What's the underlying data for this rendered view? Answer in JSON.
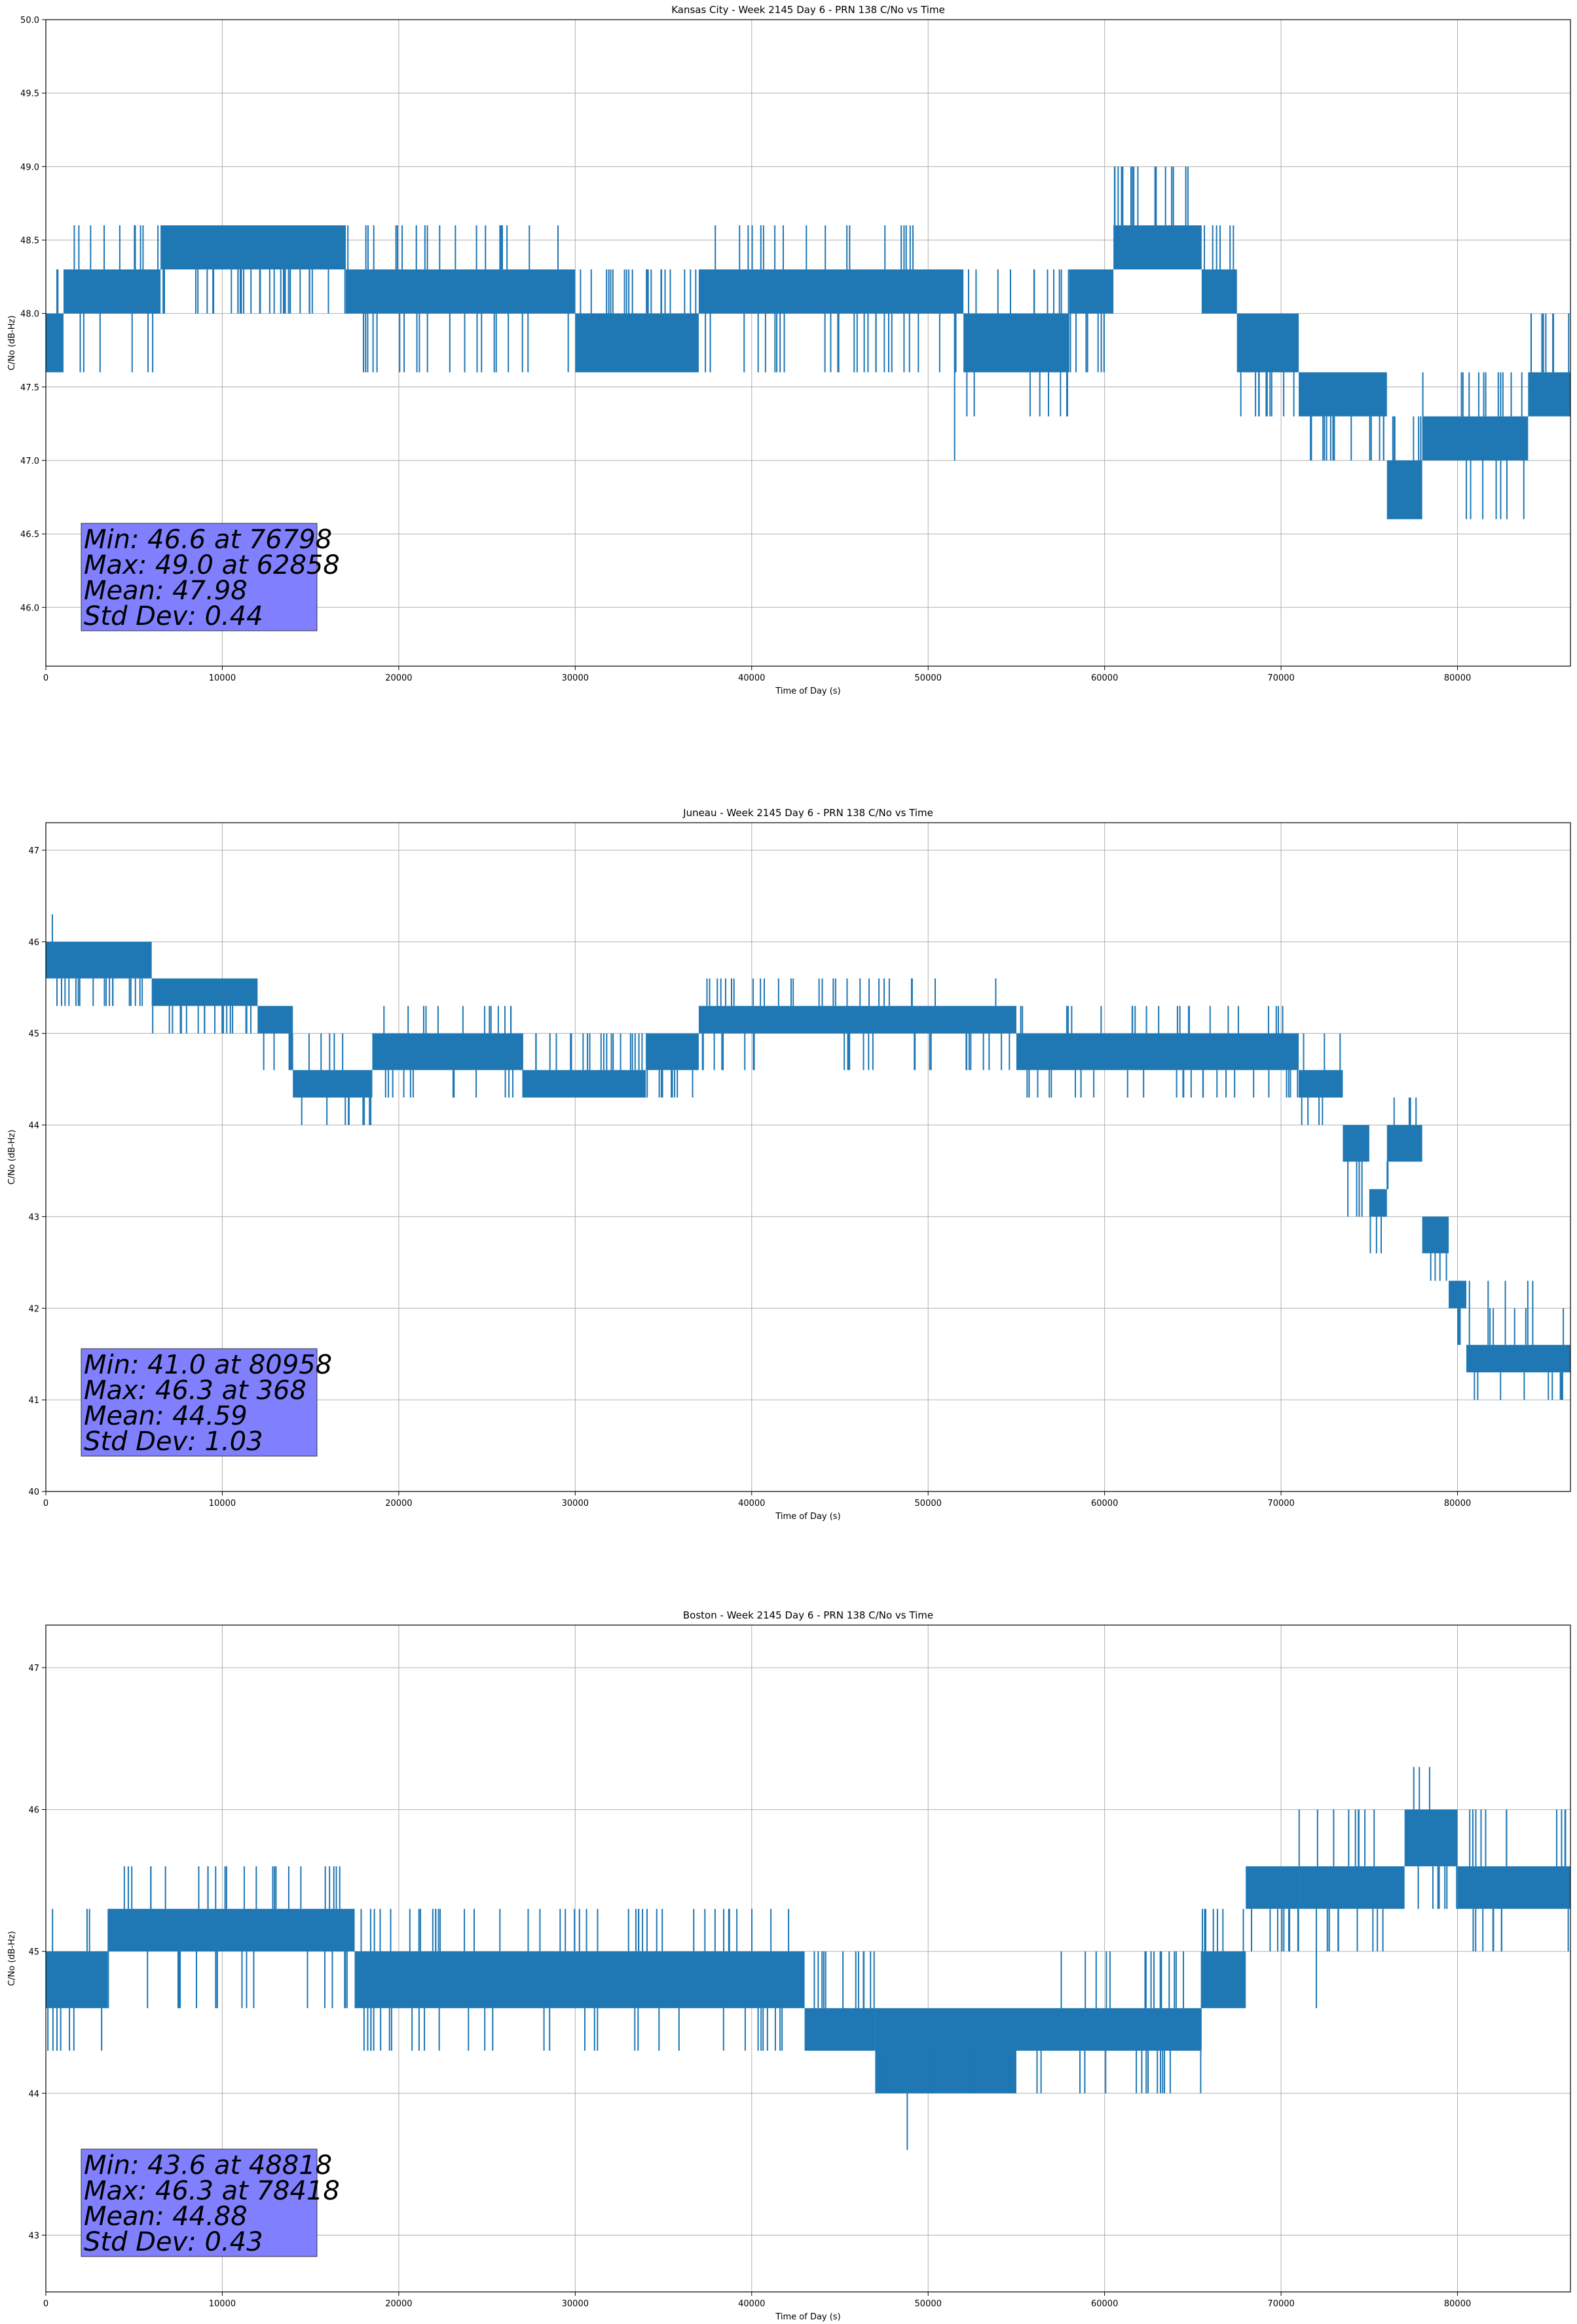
{
  "colors": {
    "line": "#1f77b4",
    "grid": "#b0b0b0",
    "stats_box": "#8080ff"
  },
  "chart_data": [
    {
      "type": "line",
      "title": "Kansas City - Week 2145 Day 6 - PRN 138 C/No vs Time",
      "xlabel": "Time of Day (s)",
      "ylabel": "C/No (dB-Hz)",
      "xlim": [
        0,
        86400
      ],
      "ylim": [
        45.6,
        50.0
      ],
      "xticks": [
        0,
        10000,
        20000,
        30000,
        40000,
        50000,
        60000,
        70000,
        80000
      ],
      "yticks": [
        46.0,
        46.5,
        47.0,
        47.5,
        48.0,
        48.5,
        49.0,
        49.5,
        50.0
      ],
      "ytick_decimals": 1,
      "grid": true,
      "stats_location": "bottom-left",
      "stats": [
        "Min: 46.6 at 76798",
        "Max: 49.0 at 62858",
        "Mean: 47.98",
        "Std Dev: 0.44"
      ],
      "series": [
        {
          "name": "C/No",
          "segments": [
            {
              "x0": 0,
              "x1": 1000,
              "lo": 47.6,
              "hi": 48.0,
              "spikes": [
                48.3
              ]
            },
            {
              "x0": 1000,
              "x1": 6500,
              "lo": 48.0,
              "hi": 48.3,
              "spikes": [
                48.6,
                47.6
              ]
            },
            {
              "x0": 6500,
              "x1": 17000,
              "lo": 48.3,
              "hi": 48.6,
              "spikes": [
                48.0
              ]
            },
            {
              "x0": 17000,
              "x1": 30000,
              "lo": 48.0,
              "hi": 48.3,
              "spikes": [
                48.6,
                47.6
              ]
            },
            {
              "x0": 30000,
              "x1": 37000,
              "lo": 47.6,
              "hi": 48.0,
              "spikes": [
                48.3
              ]
            },
            {
              "x0": 37000,
              "x1": 52000,
              "lo": 48.0,
              "hi": 48.3,
              "spikes": [
                48.6,
                47.6
              ]
            },
            {
              "x0": 52000,
              "x1": 58000,
              "lo": 47.6,
              "hi": 48.0,
              "spikes": [
                48.3,
                47.3
              ]
            },
            {
              "x0": 58000,
              "x1": 60500,
              "lo": 48.0,
              "hi": 48.3,
              "spikes": [
                47.6
              ]
            },
            {
              "x0": 60500,
              "x1": 65500,
              "lo": 48.3,
              "hi": 48.6,
              "spikes": [
                49.0
              ]
            },
            {
              "x0": 65500,
              "x1": 67500,
              "lo": 48.0,
              "hi": 48.3,
              "spikes": [
                48.6
              ]
            },
            {
              "x0": 67500,
              "x1": 71000,
              "lo": 47.6,
              "hi": 48.0,
              "spikes": [
                47.3
              ]
            },
            {
              "x0": 71000,
              "x1": 76000,
              "lo": 47.3,
              "hi": 47.6,
              "spikes": [
                47.0
              ]
            },
            {
              "x0": 76000,
              "x1": 78000,
              "lo": 46.6,
              "hi": 47.0,
              "spikes": [
                47.3
              ]
            },
            {
              "x0": 78000,
              "x1": 84000,
              "lo": 47.0,
              "hi": 47.3,
              "spikes": [
                47.6,
                46.6
              ]
            },
            {
              "x0": 84000,
              "x1": 86400,
              "lo": 47.3,
              "hi": 47.6,
              "spikes": [
                48.0
              ]
            }
          ],
          "outliers": [
            [
              18000,
              47.6
            ],
            [
              51500,
              47.0
            ],
            [
              57500,
              47.3
            ],
            [
              62858,
              49.0
            ],
            [
              76798,
              46.6
            ],
            [
              80500,
              46.6
            ],
            [
              86300,
              48.0
            ]
          ]
        }
      ]
    },
    {
      "type": "line",
      "title": "Juneau - Week 2145 Day 6 - PRN 138 C/No vs Time",
      "xlabel": "Time of Day (s)",
      "ylabel": "C/No (dB-Hz)",
      "xlim": [
        0,
        86400
      ],
      "ylim": [
        40,
        47.3
      ],
      "xticks": [
        0,
        10000,
        20000,
        30000,
        40000,
        50000,
        60000,
        70000,
        80000
      ],
      "yticks": [
        40,
        41,
        42,
        43,
        44,
        45,
        46,
        47
      ],
      "ytick_decimals": 0,
      "grid": true,
      "stats_location": "bottom-left",
      "stats": [
        "Min: 41.0 at 80958",
        "Max: 46.3 at 368",
        "Mean: 44.59",
        "Std Dev: 1.03"
      ],
      "series": [
        {
          "name": "C/No",
          "segments": [
            {
              "x0": 0,
              "x1": 6000,
              "lo": 45.6,
              "hi": 46.0,
              "spikes": [
                45.3
              ]
            },
            {
              "x0": 6000,
              "x1": 12000,
              "lo": 45.3,
              "hi": 45.6,
              "spikes": [
                45.0
              ]
            },
            {
              "x0": 12000,
              "x1": 14000,
              "lo": 45.0,
              "hi": 45.3,
              "spikes": [
                44.6
              ]
            },
            {
              "x0": 14000,
              "x1": 18500,
              "lo": 44.3,
              "hi": 44.6,
              "spikes": [
                45.0,
                44.0
              ]
            },
            {
              "x0": 18500,
              "x1": 27000,
              "lo": 44.6,
              "hi": 45.0,
              "spikes": [
                45.3,
                44.3
              ]
            },
            {
              "x0": 27000,
              "x1": 34000,
              "lo": 44.3,
              "hi": 44.6,
              "spikes": [
                45.0
              ]
            },
            {
              "x0": 34000,
              "x1": 37000,
              "lo": 44.6,
              "hi": 45.0,
              "spikes": [
                44.3
              ]
            },
            {
              "x0": 37000,
              "x1": 55000,
              "lo": 45.0,
              "hi": 45.3,
              "spikes": [
                44.6,
                45.6
              ]
            },
            {
              "x0": 55000,
              "x1": 71000,
              "lo": 44.6,
              "hi": 45.0,
              "spikes": [
                45.3,
                44.3
              ]
            },
            {
              "x0": 71000,
              "x1": 73500,
              "lo": 44.3,
              "hi": 44.6,
              "spikes": [
                45.0,
                44.0
              ]
            },
            {
              "x0": 73500,
              "x1": 75000,
              "lo": 43.6,
              "hi": 44.0,
              "spikes": [
                43.0
              ]
            },
            {
              "x0": 75000,
              "x1": 76000,
              "lo": 43.0,
              "hi": 43.3,
              "spikes": [
                42.6
              ]
            },
            {
              "x0": 76000,
              "x1": 78000,
              "lo": 43.6,
              "hi": 44.0,
              "spikes": [
                44.3,
                43.3
              ]
            },
            {
              "x0": 78000,
              "x1": 79500,
              "lo": 42.6,
              "hi": 43.0,
              "spikes": [
                42.3
              ]
            },
            {
              "x0": 79500,
              "x1": 80500,
              "lo": 42.0,
              "hi": 42.3,
              "spikes": [
                41.6
              ]
            },
            {
              "x0": 80500,
              "x1": 86400,
              "lo": 41.3,
              "hi": 41.6,
              "spikes": [
                42.0,
                41.0,
                42.3
              ]
            }
          ],
          "outliers": [
            [
              368,
              46.3
            ],
            [
              14500,
              44.0
            ],
            [
              44000,
              45.6
            ],
            [
              80958,
              41.0
            ]
          ]
        }
      ]
    },
    {
      "type": "line",
      "title": "Boston - Week 2145 Day 6 - PRN 138 C/No vs Time",
      "xlabel": "Time of Day (s)",
      "ylabel": "C/No (dB-Hz)",
      "xlim": [
        0,
        86400
      ],
      "ylim": [
        42.6,
        47.3
      ],
      "xticks": [
        0,
        10000,
        20000,
        30000,
        40000,
        50000,
        60000,
        70000,
        80000
      ],
      "yticks": [
        43,
        44,
        45,
        46,
        47
      ],
      "ytick_decimals": 0,
      "grid": true,
      "stats_location": "bottom-left",
      "stats": [
        "Min: 43.6 at 48818",
        "Max: 46.3 at 78418",
        "Mean: 44.88",
        "Std Dev: 0.43"
      ],
      "series": [
        {
          "name": "C/No",
          "segments": [
            {
              "x0": 0,
              "x1": 3500,
              "lo": 44.6,
              "hi": 45.0,
              "spikes": [
                45.3,
                44.3
              ]
            },
            {
              "x0": 3500,
              "x1": 17500,
              "lo": 45.0,
              "hi": 45.3,
              "spikes": [
                45.6,
                44.6
              ]
            },
            {
              "x0": 17500,
              "x1": 43000,
              "lo": 44.6,
              "hi": 45.0,
              "spikes": [
                45.3,
                44.3
              ]
            },
            {
              "x0": 43000,
              "x1": 47000,
              "lo": 44.3,
              "hi": 44.6,
              "spikes": [
                45.0
              ]
            },
            {
              "x0": 47000,
              "x1": 55000,
              "lo": 44.0,
              "hi": 44.6,
              "spikes": [
                44.3
              ]
            },
            {
              "x0": 55000,
              "x1": 65500,
              "lo": 44.3,
              "hi": 44.6,
              "spikes": [
                45.0,
                44.0
              ]
            },
            {
              "x0": 65500,
              "x1": 68000,
              "lo": 44.6,
              "hi": 45.0,
              "spikes": [
                45.3
              ]
            },
            {
              "x0": 68000,
              "x1": 71000,
              "lo": 45.3,
              "hi": 45.6,
              "spikes": [
                45.0
              ]
            },
            {
              "x0": 71000,
              "x1": 77000,
              "lo": 45.3,
              "hi": 45.6,
              "spikes": [
                46.0,
                45.0
              ]
            },
            {
              "x0": 77000,
              "x1": 80000,
              "lo": 45.6,
              "hi": 46.0,
              "spikes": [
                45.3,
                46.3
              ]
            },
            {
              "x0": 80000,
              "x1": 86400,
              "lo": 45.3,
              "hi": 45.6,
              "spikes": [
                46.0,
                45.0
              ]
            }
          ],
          "outliers": [
            [
              48818,
              43.6
            ],
            [
              78418,
              46.3
            ],
            [
              72000,
              44.6
            ]
          ]
        }
      ]
    }
  ]
}
